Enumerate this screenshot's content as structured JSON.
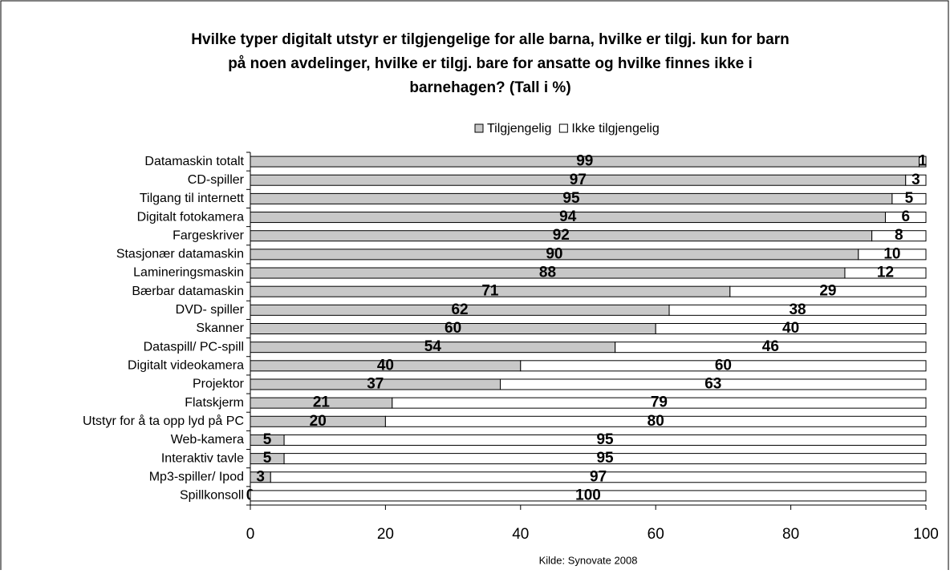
{
  "chart_data": {
    "type": "stacked_barh",
    "title": [
      "Hvilke typer digitalt utstyr er tilgjengelige for alle barna, hvilke er tilgj. kun for barn",
      "på noen avdelinger, hvilke er tilgj. bare for ansatte og hvilke finnes ikke i",
      "barnehagen? (Tall i %)"
    ],
    "source": "Kilde: Synovate 2008",
    "categories": [
      "Datamaskin totalt",
      "CD-spiller",
      "Tilgang til internett",
      "Digitalt fotokamera",
      "Fargeskriver",
      "Stasjonær datamaskin",
      "Lamineringsmaskin",
      "Bærbar datamaskin",
      "DVD- spiller",
      "Skanner",
      "Dataspill/ PC-spill",
      "Digitalt videokamera",
      "Projektor",
      "Flatskjerm",
      "Utstyr for å ta opp lyd på PC",
      "Web-kamera",
      "Interaktiv tavle",
      "Mp3-spiller/ Ipod",
      "Spillkonsoll"
    ],
    "series": [
      {
        "name": "Tilgjengelig",
        "color": "#c8c8c8",
        "values": [
          99,
          97,
          95,
          94,
          92,
          90,
          88,
          71,
          62,
          60,
          54,
          40,
          37,
          21,
          20,
          5,
          5,
          3,
          0
        ]
      },
      {
        "name": "Ikke tilgjengelig",
        "color": "#ffffff",
        "values": [
          1,
          3,
          5,
          6,
          8,
          10,
          12,
          29,
          38,
          40,
          46,
          60,
          63,
          79,
          80,
          95,
          95,
          97,
          100
        ]
      }
    ],
    "xlim": [
      0,
      100
    ],
    "xticks": [
      0,
      20,
      40,
      60,
      80,
      100
    ],
    "legend": "top"
  }
}
